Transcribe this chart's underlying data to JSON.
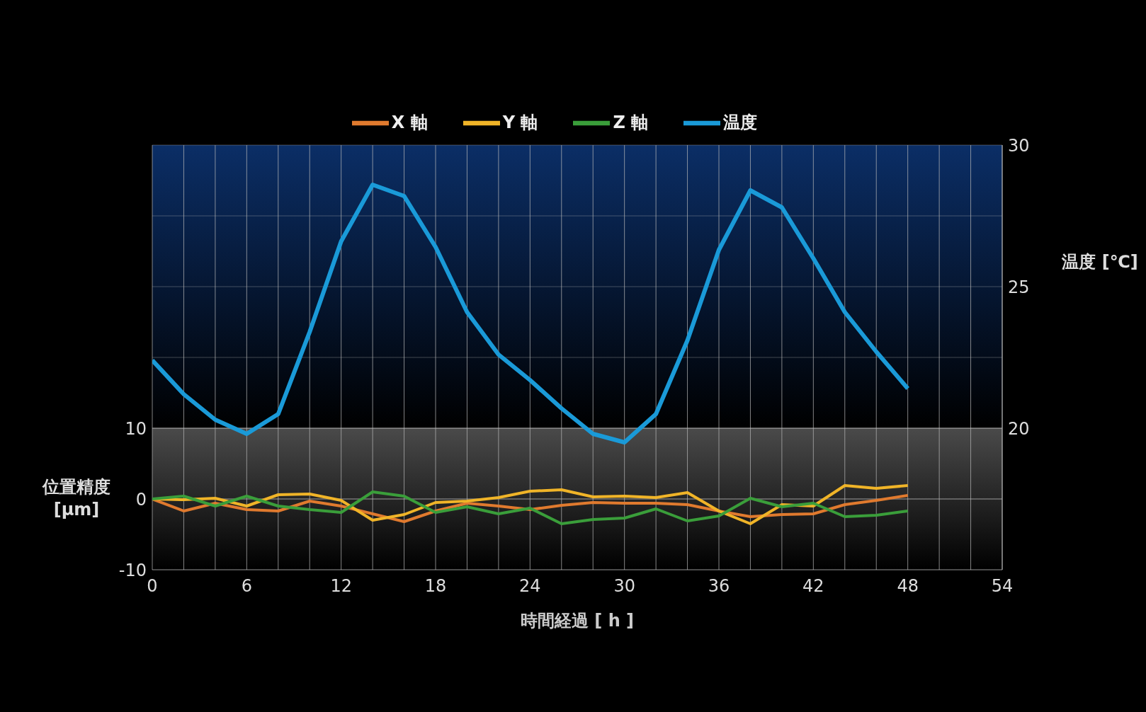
{
  "chart_data": {
    "type": "line",
    "xlabel": "時間経過 [ h ]",
    "ylabel": "位置精度 [μm]",
    "y2label": "温度 [℃]",
    "x": [
      0,
      2,
      4,
      6,
      8,
      10,
      12,
      14,
      16,
      18,
      20,
      22,
      24,
      26,
      28,
      30,
      32,
      34,
      36,
      38,
      40,
      42,
      44,
      46,
      48
    ],
    "series": [
      {
        "name": "X 軸",
        "color": "#e07a2e",
        "values": [
          0,
          -1.7,
          -0.6,
          -1.5,
          -1.7,
          -0.3,
          -1.0,
          -2.1,
          -3.2,
          -1.7,
          -0.6,
          -1.0,
          -1.5,
          -0.9,
          -0.5,
          -0.6,
          -0.6,
          -0.8,
          -1.7,
          -2.5,
          -2.2,
          -2.1,
          -0.8,
          -0.2,
          0.5
        ]
      },
      {
        "name": "Y 軸",
        "color": "#f0b428",
        "values": [
          0,
          -0.1,
          0.1,
          -1.0,
          0.6,
          0.7,
          -0.2,
          -3.0,
          -2.2,
          -0.5,
          -0.3,
          0.2,
          1.1,
          1.3,
          0.3,
          0.4,
          0.2,
          0.9,
          -1.7,
          -3.5,
          -0.8,
          -1.0,
          1.9,
          1.5,
          1.9
        ]
      },
      {
        "name": "Z 軸",
        "color": "#3a9e3a",
        "values": [
          0,
          0.4,
          -1.0,
          0.4,
          -1.0,
          -1.5,
          -1.9,
          1.0,
          0.4,
          -1.9,
          -1.1,
          -2.1,
          -1.3,
          -3.5,
          -2.9,
          -2.7,
          -1.4,
          -3.1,
          -2.4,
          0.1,
          -1.1,
          -0.6,
          -2.5,
          -2.3,
          -1.7
        ]
      },
      {
        "name": "温度",
        "color": "#1a9ad8",
        "axis": "y2",
        "values": [
          22.4,
          21.2,
          20.3,
          19.8,
          20.5,
          23.4,
          26.6,
          28.6,
          28.2,
          26.4,
          24.1,
          22.6,
          21.7,
          20.7,
          19.8,
          19.5,
          20.5,
          23.1,
          26.3,
          28.4,
          27.8,
          26.0,
          24.1,
          22.7,
          21.4
        ]
      }
    ],
    "xlim": [
      0,
      54
    ],
    "xticks": [
      0,
      {
        "value": 2,
        "label": null
      },
      {
        "value": 4,
        "label": null
      },
      6,
      {
        "value": 8,
        "label": null
      },
      {
        "value": 10,
        "label": null
      },
      12,
      {
        "value": 14,
        "label": null
      },
      {
        "value": 16,
        "label": null
      },
      18,
      {
        "value": 20,
        "label": null
      },
      {
        "value": 22,
        "label": null
      },
      24,
      {
        "value": 26,
        "label": null
      },
      {
        "value": 28,
        "label": null
      },
      30,
      {
        "value": 32,
        "label": null
      },
      {
        "value": 34,
        "label": null
      },
      36,
      {
        "value": 38,
        "label": null
      },
      {
        "value": 40,
        "label": null
      },
      42,
      {
        "value": 44,
        "label": null
      },
      {
        "value": 46,
        "label": null
      },
      48,
      {
        "value": 50,
        "label": null
      },
      {
        "value": 52,
        "label": null
      },
      54
    ],
    "ylim": [
      -10,
      50
    ],
    "yticks": [
      -10,
      0,
      10
    ],
    "y2lim": [
      15,
      30
    ],
    "y2ticks": [
      20,
      {
        "value": 22.5,
        "label": null
      },
      25,
      {
        "value": 27.5,
        "label": null
      },
      30
    ],
    "bands": [
      {
        "axis": "y",
        "from": -10,
        "to": 10,
        "color": "#4a4a4a"
      },
      {
        "axis": "y2",
        "from": 20,
        "to": 30,
        "color": "#0b2e66"
      }
    ],
    "grid": true,
    "legend": "top"
  }
}
